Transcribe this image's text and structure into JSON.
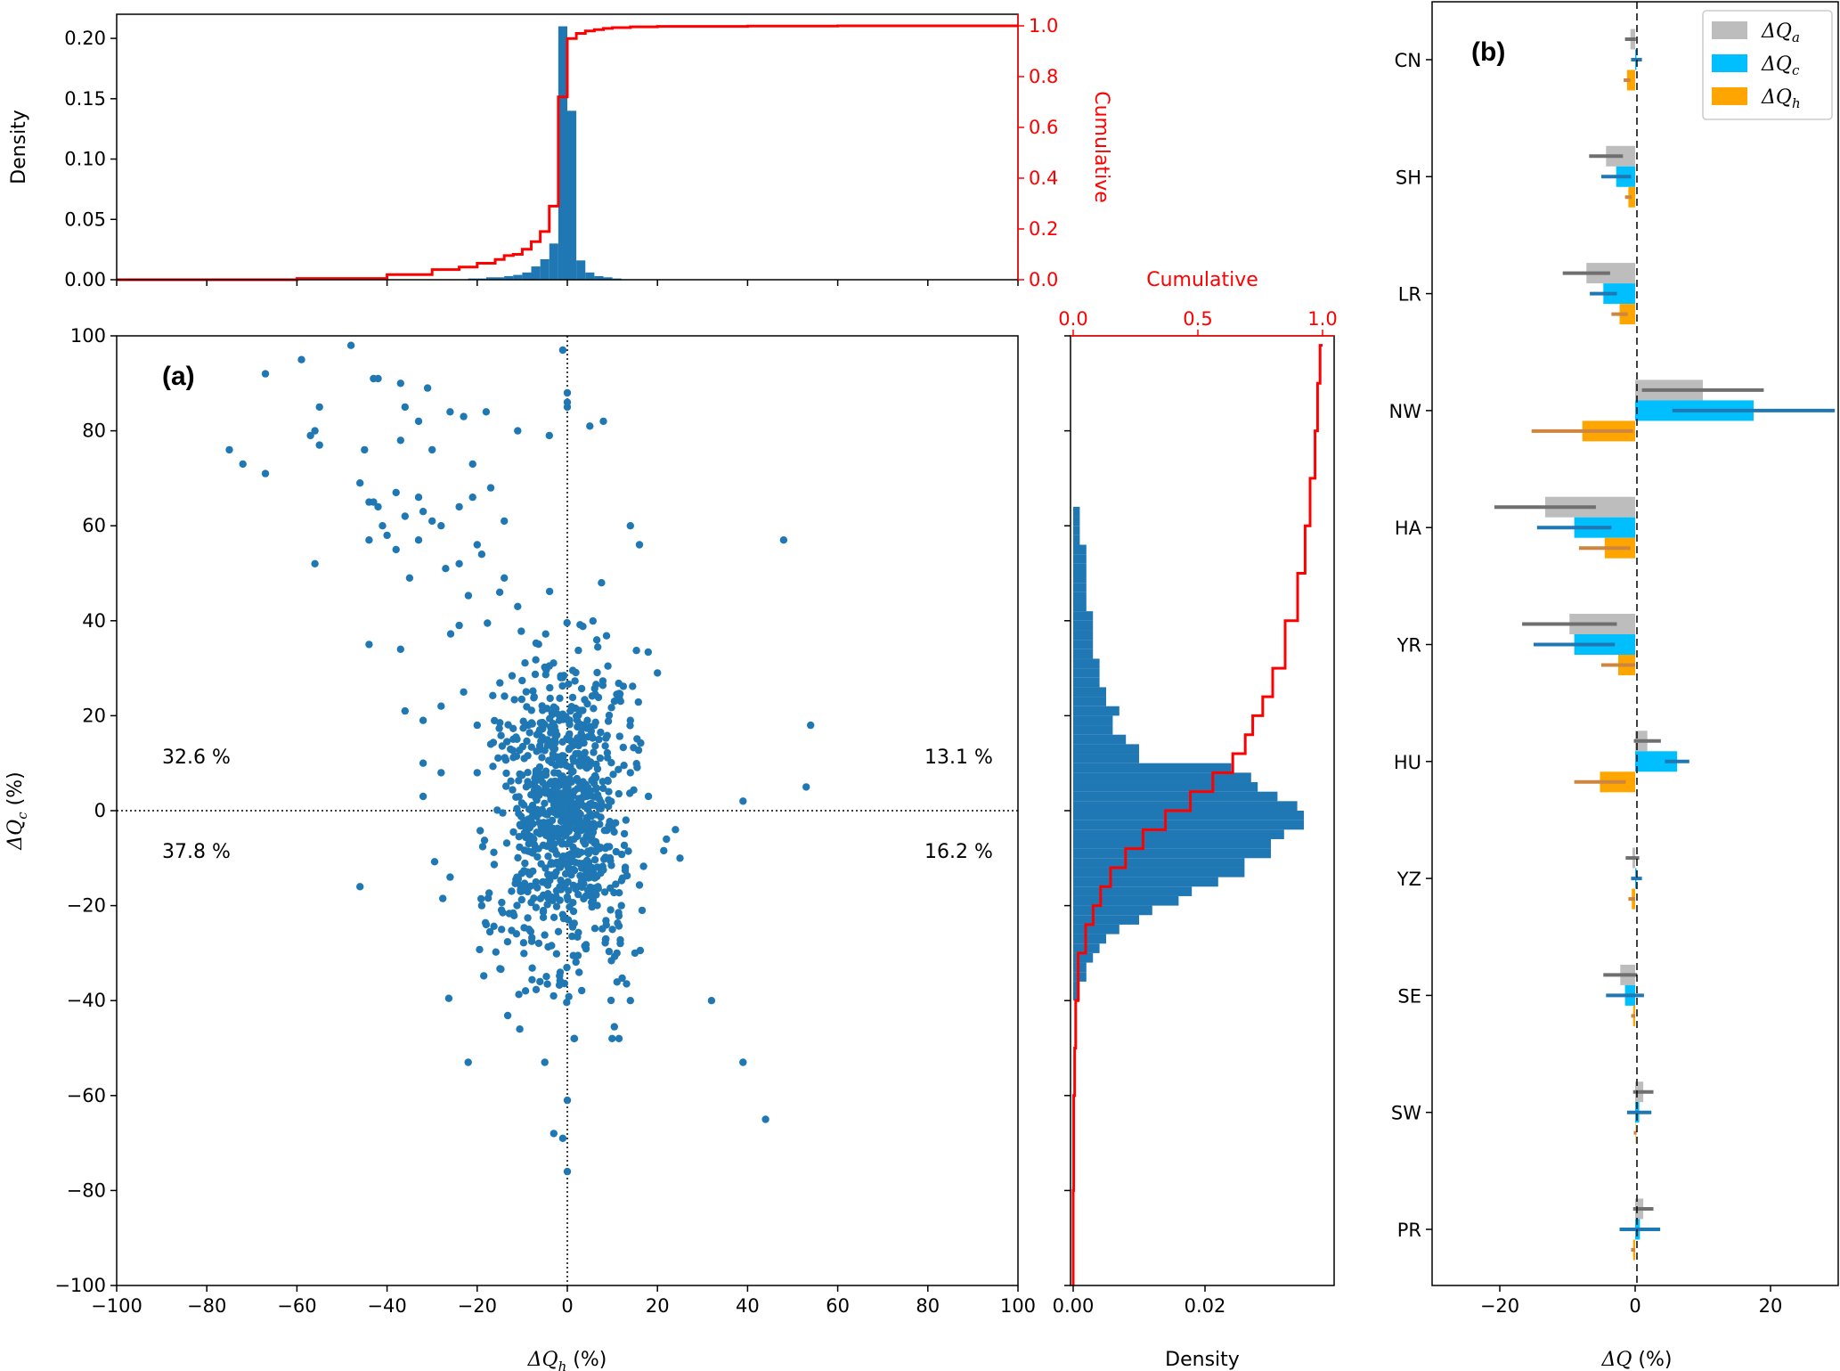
{
  "colors": {
    "blue": "#1f77b4",
    "red": "#ff0000",
    "gray": "#bdbdbd",
    "gray_err": "#6f6f6f",
    "cyan": "#00bfff",
    "cyan_err": "#1f77b4",
    "orange": "#ffa500",
    "orange_err": "#cd853f"
  },
  "panel_a": {
    "label": "(a)",
    "quadrant_labels": {
      "top_left": "32.6 %",
      "top_right": "13.1 %",
      "bottom_left": "37.8 %",
      "bottom_right": "16.2 %"
    },
    "xlabel_base": "ΔQ",
    "xlabel_sub": "h",
    "xlabel_unit": " (%)",
    "ylabel_base": "ΔQ",
    "ylabel_sub": "c",
    "ylabel_unit": " (%)"
  },
  "top_hist": {
    "ylabel": "Density",
    "ylabel_right": "Cumulative"
  },
  "right_hist": {
    "xlabel": "Density",
    "xlabel_top": "Cumulative"
  },
  "panel_b": {
    "label": "(b)",
    "xlabel_base": "ΔQ",
    "xlabel_unit": " (%)",
    "legend": [
      {
        "base": "ΔQ",
        "sub": "a"
      },
      {
        "base": "ΔQ",
        "sub": "c"
      },
      {
        "base": "ΔQ",
        "sub": "h"
      }
    ]
  },
  "chart_data": [
    {
      "type": "scatter",
      "xlim": [
        -100,
        100
      ],
      "ylim": [
        -100,
        100
      ],
      "xticks": [
        -100,
        -80,
        -60,
        -40,
        -20,
        0,
        20,
        40,
        60,
        80,
        100
      ],
      "yticks": [
        -100,
        -80,
        -60,
        -40,
        -20,
        0,
        20,
        40,
        60,
        80,
        100
      ],
      "note_points": "outlying points read from the figure",
      "points": [
        [
          -48,
          98
        ],
        [
          -59,
          95
        ],
        [
          -67,
          92
        ],
        [
          -42,
          91
        ],
        [
          -43,
          91
        ],
        [
          -37,
          90
        ],
        [
          -31,
          89
        ],
        [
          -55,
          85
        ],
        [
          -36,
          85
        ],
        [
          -26,
          84
        ],
        [
          -23,
          83
        ],
        [
          -33,
          82
        ],
        [
          -18,
          84
        ],
        [
          -57,
          79
        ],
        [
          -55,
          77
        ],
        [
          -56,
          80
        ],
        [
          -75,
          76
        ],
        [
          -72,
          73
        ],
        [
          -67,
          71
        ],
        [
          -45,
          76
        ],
        [
          -37,
          78
        ],
        [
          -30,
          76
        ],
        [
          -21,
          73
        ],
        [
          -11,
          80
        ],
        [
          -4,
          79
        ],
        [
          5,
          81
        ],
        [
          8,
          82
        ],
        [
          -46,
          69
        ],
        [
          -44,
          65
        ],
        [
          -43,
          65
        ],
        [
          -42,
          64
        ],
        [
          -38,
          67
        ],
        [
          -36,
          62
        ],
        [
          -33,
          66
        ],
        [
          -32,
          63
        ],
        [
          -30,
          61
        ],
        [
          -28,
          60
        ],
        [
          -41,
          60
        ],
        [
          -44,
          57
        ],
        [
          -40,
          58
        ],
        [
          -38,
          55
        ],
        [
          -35,
          49
        ],
        [
          -33,
          57
        ],
        [
          -24,
          64
        ],
        [
          -21,
          66
        ],
        [
          -17,
          68
        ],
        [
          -14,
          61
        ],
        [
          -20,
          56
        ],
        [
          -19,
          54
        ],
        [
          -56,
          52
        ],
        [
          -27,
          51
        ],
        [
          -24,
          52
        ],
        [
          -14,
          49
        ],
        [
          14,
          60
        ],
        [
          16,
          56
        ],
        [
          48,
          57
        ],
        [
          -44,
          35
        ],
        [
          -37,
          34
        ],
        [
          -24,
          39
        ],
        [
          -15,
          46
        ],
        [
          -11,
          43
        ],
        [
          20,
          29
        ],
        [
          -36,
          21
        ],
        [
          -32,
          19
        ],
        [
          -28,
          22
        ],
        [
          -23,
          25
        ],
        [
          -20,
          18
        ],
        [
          -17,
          14
        ],
        [
          14,
          19
        ],
        [
          -32,
          10
        ],
        [
          -28,
          8
        ],
        [
          -32,
          3
        ],
        [
          -20,
          8
        ],
        [
          14,
          8
        ],
        [
          18,
          3
        ],
        [
          39,
          2
        ],
        [
          53,
          5
        ],
        [
          54,
          18
        ],
        [
          -46,
          -16
        ],
        [
          -26,
          -14
        ],
        [
          -19,
          -20
        ],
        [
          -18,
          -24
        ],
        [
          22,
          -6
        ],
        [
          24,
          -4
        ],
        [
          25,
          -10
        ],
        [
          12,
          -20
        ],
        [
          10,
          -25
        ],
        [
          11,
          -30
        ],
        [
          15,
          -30
        ],
        [
          14,
          -40
        ],
        [
          32,
          -40
        ],
        [
          39,
          -53
        ],
        [
          44,
          -65
        ],
        [
          -22,
          -53
        ],
        [
          -5,
          -53
        ],
        [
          -3,
          -68
        ],
        [
          -1,
          -69
        ],
        [
          0,
          -61
        ],
        [
          0,
          -76
        ],
        [
          -1,
          97
        ],
        [
          0,
          88
        ],
        [
          0,
          86
        ],
        [
          0,
          85
        ]
      ],
      "cluster": {
        "x_center": -1,
        "x_spread": 6,
        "y_range": [
          -48,
          48
        ],
        "count": 900
      }
    },
    {
      "type": "bar",
      "name": "top_histogram",
      "xlim": [
        -100,
        100
      ],
      "ylim": [
        0,
        0.22
      ],
      "yticks": [
        0.0,
        0.05,
        0.1,
        0.15,
        0.2
      ],
      "ylim_right": [
        0,
        1.0
      ],
      "yticks_right": [
        0.0,
        0.2,
        0.4,
        0.6,
        0.8,
        1.0
      ],
      "bin_width": 2,
      "bins_left": [
        -22,
        -20,
        -18,
        -16,
        -14,
        -12,
        -10,
        -8,
        -6,
        -4,
        -2,
        0,
        2,
        4,
        6,
        8,
        10
      ],
      "density": [
        0.001,
        0.001,
        0.002,
        0.002,
        0.003,
        0.004,
        0.006,
        0.011,
        0.017,
        0.03,
        0.21,
        0.14,
        0.016,
        0.006,
        0.003,
        0.002,
        0.001
      ],
      "cumulative": {
        "x": [
          -100,
          -60,
          -40,
          -30,
          -24,
          -20,
          -16,
          -14,
          -12,
          -10,
          -8,
          -6,
          -4,
          -2,
          0,
          2,
          4,
          6,
          8,
          10,
          14,
          20,
          40,
          60,
          100
        ],
        "y": [
          0.0,
          0.005,
          0.02,
          0.04,
          0.05,
          0.065,
          0.08,
          0.095,
          0.1,
          0.12,
          0.15,
          0.19,
          0.29,
          0.72,
          0.95,
          0.97,
          0.98,
          0.985,
          0.99,
          0.993,
          0.996,
          0.998,
          0.999,
          1.0,
          1.0
        ]
      }
    },
    {
      "type": "bar",
      "name": "right_histogram",
      "orientation": "horizontal",
      "ylim": [
        -100,
        100
      ],
      "xlim": [
        0,
        0.04
      ],
      "xticks": [
        0.0,
        0.02
      ],
      "xlim_top": [
        0,
        1.0
      ],
      "xticks_top": [
        0.0,
        0.5,
        1.0
      ],
      "bin_width": 2,
      "y_bins": [
        -40,
        -38,
        -36,
        -34,
        -32,
        -30,
        -28,
        -26,
        -24,
        -22,
        -20,
        -18,
        -16,
        -14,
        -12,
        -10,
        -8,
        -6,
        -4,
        -2,
        0,
        2,
        4,
        6,
        8,
        10,
        12,
        14,
        16,
        18,
        20,
        22,
        24,
        26,
        28,
        30,
        32,
        34,
        36,
        38,
        40,
        42,
        44,
        46,
        48,
        50,
        52,
        54,
        56,
        58,
        60,
        62
      ],
      "density": [
        0.001,
        0.001,
        0.002,
        0.002,
        0.003,
        0.004,
        0.005,
        0.007,
        0.01,
        0.012,
        0.016,
        0.018,
        0.022,
        0.026,
        0.026,
        0.03,
        0.03,
        0.032,
        0.035,
        0.035,
        0.034,
        0.031,
        0.028,
        0.027,
        0.024,
        0.01,
        0.01,
        0.008,
        0.006,
        0.006,
        0.007,
        0.005,
        0.005,
        0.004,
        0.004,
        0.004,
        0.003,
        0.003,
        0.003,
        0.003,
        0.003,
        0.002,
        0.002,
        0.002,
        0.002,
        0.002,
        0.002,
        0.002,
        0.001,
        0.001,
        0.001,
        0.001
      ],
      "cumulative": {
        "y": [
          -100,
          -80,
          -60,
          -50,
          -40,
          -30,
          -24,
          -20,
          -16,
          -12,
          -8,
          -4,
          0,
          4,
          8,
          12,
          16,
          20,
          24,
          30,
          40,
          50,
          60,
          70,
          80,
          90,
          98
        ],
        "x": [
          0.0,
          0.002,
          0.006,
          0.01,
          0.02,
          0.05,
          0.08,
          0.11,
          0.15,
          0.21,
          0.28,
          0.37,
          0.47,
          0.56,
          0.64,
          0.69,
          0.72,
          0.76,
          0.8,
          0.85,
          0.9,
          0.93,
          0.95,
          0.97,
          0.98,
          0.99,
          1.0
        ]
      }
    },
    {
      "type": "bar",
      "name": "panel_b",
      "orientation": "horizontal",
      "categories": [
        "CN",
        "SH",
        "LR",
        "NW",
        "HA",
        "YR",
        "HU",
        "YZ",
        "SE",
        "SW",
        "PR"
      ],
      "xlim": [
        -30,
        30
      ],
      "xticks": [
        -20,
        0,
        20
      ],
      "series": [
        {
          "name": "ΔQa",
          "values": [
            -0.7,
            -4.3,
            -7.2,
            10.0,
            -13.3,
            -9.7,
            1.8,
            -0.4,
            -2.2,
            1.2,
            1.2
          ],
          "err": [
            0.8,
            2.5,
            3.5,
            9.0,
            7.5,
            7.0,
            2.0,
            1.0,
            2.5,
            1.5,
            1.5
          ]
        },
        {
          "name": "ΔQc",
          "values": [
            0.2,
            -2.8,
            -4.7,
            17.5,
            -9.0,
            -9.0,
            6.2,
            0.2,
            -1.5,
            0.6,
            0.7
          ],
          "err": [
            0.8,
            2.2,
            2.0,
            12.0,
            5.5,
            6.0,
            1.8,
            0.8,
            2.8,
            1.8,
            3.0
          ]
        },
        {
          "name": "ΔQh",
          "values": [
            -1.2,
            -1.0,
            -2.3,
            -7.8,
            -4.5,
            -2.5,
            -5.2,
            -0.5,
            -0.3,
            0.0,
            -0.3
          ],
          "err": [
            0.5,
            0.5,
            1.2,
            7.5,
            3.8,
            2.5,
            3.8,
            0.5,
            0.3,
            0.2,
            0.3
          ]
        }
      ]
    }
  ]
}
